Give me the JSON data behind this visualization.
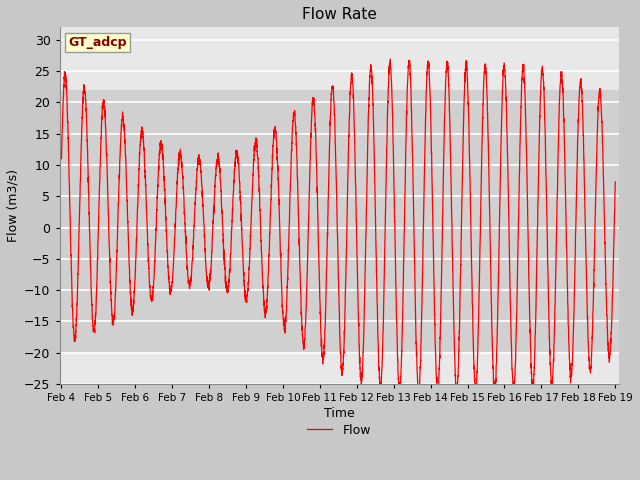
{
  "title": "Flow Rate",
  "xlabel": "Time",
  "ylabel": "Flow (m3/s)",
  "line_color": "red",
  "line_label": "Flow",
  "annotation_text": "GT_adcp",
  "annotation_box_color": "#ffffcc",
  "annotation_border_color": "#999999",
  "annotation_text_color": "#8b0000",
  "ylim": [
    -25,
    32
  ],
  "yticks": [
    -25,
    -20,
    -15,
    -10,
    -5,
    0,
    5,
    10,
    15,
    20,
    25,
    30
  ],
  "fig_bg_color": "#c8c8c8",
  "plot_bg_color": "#e8e8e8",
  "shaded_band_low": -20,
  "shaded_band_high": 22,
  "shaded_band_color": "#d8d8d8",
  "x_start_day": 4,
  "x_end_day": 19,
  "xtick_days": [
    4,
    5,
    6,
    7,
    8,
    9,
    10,
    11,
    12,
    13,
    14,
    15,
    16,
    17,
    18,
    19
  ]
}
